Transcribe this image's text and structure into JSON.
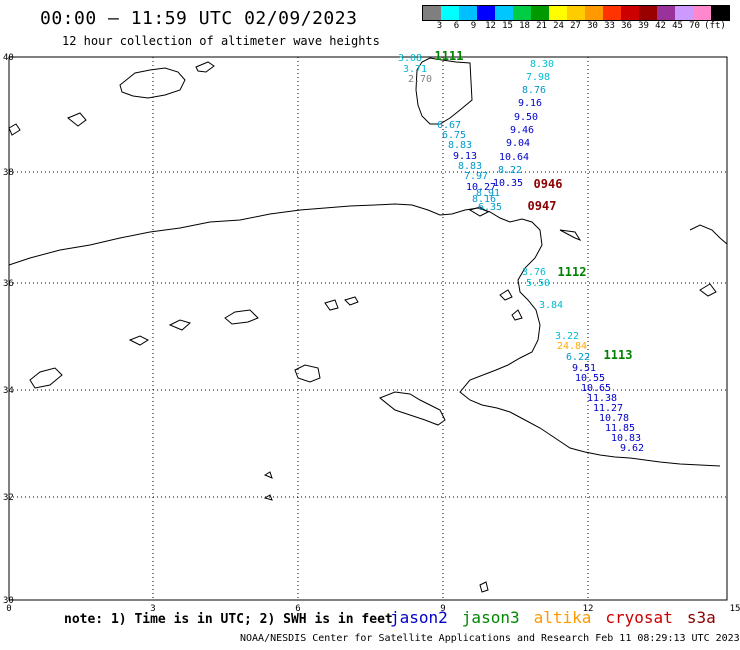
{
  "header": {
    "title": "00:00 – 11:59 UTC 02/09/2023",
    "subtitle": "12 hour collection of altimeter wave heights"
  },
  "scale": {
    "unit": "(ft)",
    "labels": [
      "3",
      "6",
      "9",
      "12",
      "15",
      "18",
      "21",
      "24",
      "27",
      "30",
      "33",
      "36",
      "39",
      "42",
      "45",
      "70"
    ],
    "colors": [
      "#7f7f7f",
      "#00ffff",
      "#00bfff",
      "#0000ff",
      "#00c8ff",
      "#00cc44",
      "#009900",
      "#ffff00",
      "#ffcc00",
      "#ff9900",
      "#ff3300",
      "#cc0000",
      "#990000",
      "#993399",
      "#cc99ff",
      "#ff88cc",
      "#000000"
    ]
  },
  "axes": {
    "lat_labels": [
      "40",
      "38",
      "36",
      "34",
      "32",
      "30"
    ],
    "lon_labels": [
      "0",
      "3",
      "6",
      "9",
      "12",
      "15"
    ]
  },
  "passes": [
    {
      "id": "1111",
      "color": "#008000"
    },
    {
      "id": "0946",
      "color": "#8b0000"
    },
    {
      "id": "0947",
      "color": "#8b0000"
    },
    {
      "id": "1112",
      "color": "#008000"
    },
    {
      "id": "1113",
      "color": "#008000"
    }
  ],
  "readings": [
    {
      "v": "3.08",
      "c": "#00bcd4"
    },
    {
      "v": "3.71",
      "c": "#00bcd4"
    },
    {
      "v": "2.70",
      "c": "#808080"
    },
    {
      "v": "8.30",
      "c": "#00bcd4"
    },
    {
      "v": "7.98",
      "c": "#00bcd4"
    },
    {
      "v": "8.76",
      "c": "#0099cc"
    },
    {
      "v": "9.16",
      "c": "#0000cc"
    },
    {
      "v": "9.50",
      "c": "#0000cc"
    },
    {
      "v": "9.46",
      "c": "#0000cc"
    },
    {
      "v": "9.04",
      "c": "#0000cc"
    },
    {
      "v": "10.64",
      "c": "#0000cc"
    },
    {
      "v": "8.22",
      "c": "#0099cc"
    },
    {
      "v": "10.35",
      "c": "#0000cc"
    },
    {
      "v": "6.67",
      "c": "#0099cc"
    },
    {
      "v": "6.75",
      "c": "#0099cc"
    },
    {
      "v": "8.83",
      "c": "#0099cc"
    },
    {
      "v": "9.13",
      "c": "#0000cc"
    },
    {
      "v": "8.83",
      "c": "#0099cc"
    },
    {
      "v": "7.97",
      "c": "#0099cc"
    },
    {
      "v": "10.27",
      "c": "#0000cc"
    },
    {
      "v": "8.91",
      "c": "#0099cc"
    },
    {
      "v": "8.16",
      "c": "#0099cc"
    },
    {
      "v": "6.35",
      "c": "#0099cc"
    },
    {
      "v": "3.76",
      "c": "#00bcd4"
    },
    {
      "v": "5.50",
      "c": "#00bcd4"
    },
    {
      "v": "3.84",
      "c": "#00bcd4"
    },
    {
      "v": "3.22",
      "c": "#00bcd4"
    },
    {
      "v": "24.84",
      "c": "#ffaa00"
    },
    {
      "v": "6.22",
      "c": "#0099cc"
    },
    {
      "v": "9.51",
      "c": "#0000cc"
    },
    {
      "v": "10.55",
      "c": "#0000cc"
    },
    {
      "v": "10.65",
      "c": "#0000cc"
    },
    {
      "v": "11.38",
      "c": "#0000cc"
    },
    {
      "v": "11.27",
      "c": "#0000cc"
    },
    {
      "v": "10.78",
      "c": "#0000cc"
    },
    {
      "v": "11.85",
      "c": "#0000cc"
    },
    {
      "v": "10.83",
      "c": "#0000cc"
    },
    {
      "v": "9.62",
      "c": "#0000cc"
    }
  ],
  "note": "note: 1) Time is in UTC; 2) SWH is in feet",
  "satellites": [
    {
      "name": "jason2",
      "color": "#0000cc"
    },
    {
      "name": "jason3",
      "color": "#008800"
    },
    {
      "name": "altika",
      "color": "#ff9900"
    },
    {
      "name": "cryosat",
      "color": "#cc0000"
    },
    {
      "name": "s3a",
      "color": "#8b0000"
    }
  ],
  "footer": "NOAA/NESDIS Center for Satellite Applications and Research   Feb 11 08:29:13 UTC 2023"
}
